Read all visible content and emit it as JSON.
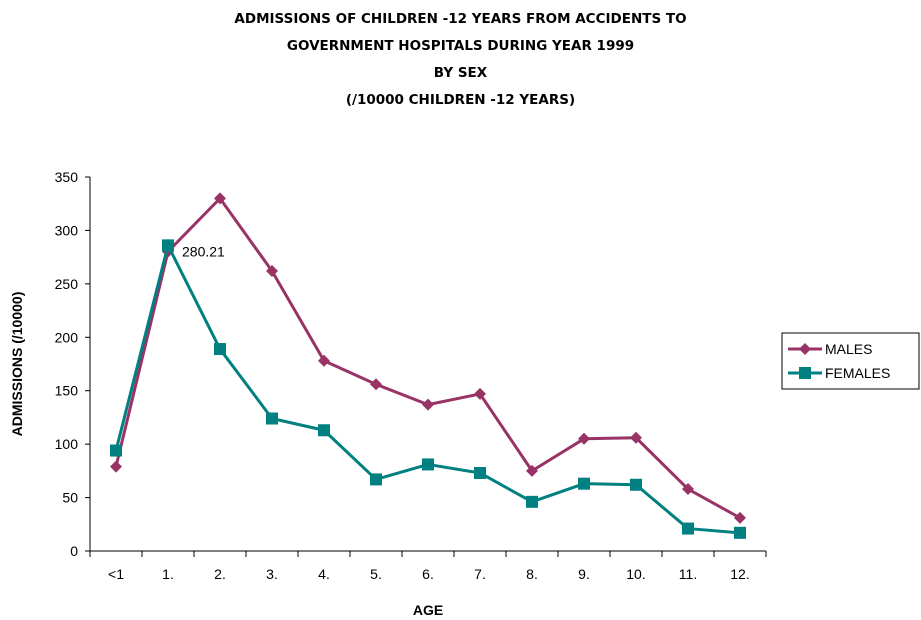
{
  "chart_data": {
    "type": "line",
    "title_lines": [
      "ADMISSIONS OF CHILDREN -12 YEARS FROM ACCIDENTS TO",
      "GOVERNMENT HOSPITALS DURING YEAR 1999",
      "BY SEX",
      "(/10000 CHILDREN -12 YEARS)"
    ],
    "xlabel": "AGE",
    "ylabel": "ADMISSIONS (/10000)",
    "categories": [
      "<1",
      "1.",
      "2.",
      "3.",
      "4.",
      "5.",
      "6.",
      "7.",
      "8.",
      "9.",
      "10.",
      "11.",
      "12."
    ],
    "ylim": [
      0,
      350
    ],
    "yticks": [
      0,
      50,
      100,
      150,
      200,
      250,
      300,
      350
    ],
    "grid": false,
    "legend_position": "right",
    "series": [
      {
        "name": "MALES",
        "color": "#993366",
        "marker": "diamond",
        "values": [
          79,
          280.21,
          330,
          262,
          178,
          156,
          137,
          147,
          75,
          105,
          106,
          58,
          31
        ]
      },
      {
        "name": "FEMALES",
        "color": "#008080",
        "marker": "square",
        "values": [
          94,
          286,
          189,
          124,
          113,
          67,
          81,
          73,
          46,
          63,
          62,
          21,
          17
        ]
      }
    ],
    "annotations": [
      {
        "series": "MALES",
        "category": "1.",
        "text": "280.21"
      }
    ]
  }
}
